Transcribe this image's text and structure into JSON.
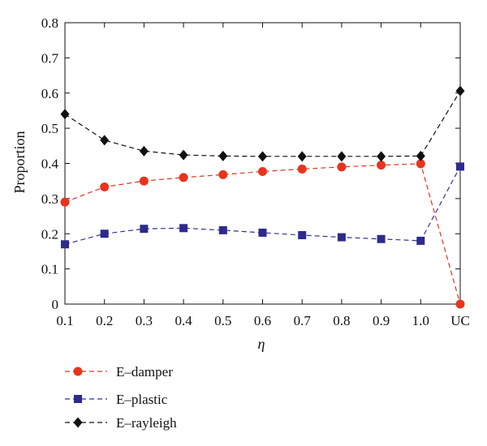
{
  "chart_data": {
    "type": "line",
    "xlabel": "η",
    "ylabel": "Proportion",
    "categories": [
      "0.1",
      "0.2",
      "0.3",
      "0.4",
      "0.5",
      "0.6",
      "0.7",
      "0.8",
      "0.9",
      "1.0",
      "UC"
    ],
    "ylim": [
      0,
      0.8
    ],
    "yticks": [
      "0",
      "0.1",
      "0.2",
      "0.3",
      "0.4",
      "0.5",
      "0.6",
      "0.7",
      "0.8"
    ],
    "grid": false,
    "legend_position": "below",
    "series": [
      {
        "name": "E–damper",
        "color": "#e8341c",
        "line_color": "#d8382a",
        "marker": "circle",
        "values": [
          0.29,
          0.333,
          0.35,
          0.36,
          0.368,
          0.377,
          0.384,
          0.39,
          0.395,
          0.399,
          0.0
        ]
      },
      {
        "name": "E–plastic",
        "color": "#2e2a8c",
        "line_color": "#34309a",
        "marker": "square",
        "values": [
          0.17,
          0.2,
          0.214,
          0.216,
          0.21,
          0.203,
          0.196,
          0.19,
          0.185,
          0.18,
          0.391
        ]
      },
      {
        "name": "E–rayleigh",
        "color": "#111111",
        "line_color": "#111111",
        "marker": "diamond",
        "values": [
          0.54,
          0.466,
          0.435,
          0.424,
          0.421,
          0.42,
          0.42,
          0.42,
          0.42,
          0.421,
          0.606
        ]
      }
    ]
  }
}
